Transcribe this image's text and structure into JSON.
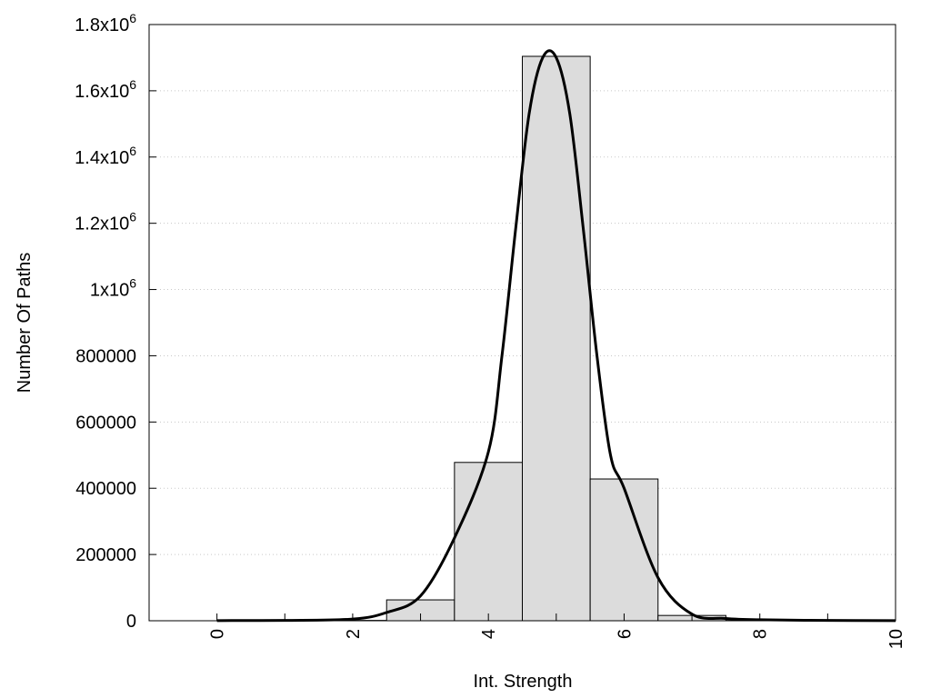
{
  "chart_data": {
    "type": "bar",
    "title": "",
    "xlabel": "Int. Strength",
    "ylabel": "Number Of Paths",
    "xlim": [
      -1,
      10
    ],
    "ylim": [
      0,
      1800000
    ],
    "grid": "horizontal-dotted",
    "x_ticks": [
      {
        "value": 0,
        "label": "0"
      },
      {
        "value": 2,
        "label": "2"
      },
      {
        "value": 4,
        "label": "4"
      },
      {
        "value": 6,
        "label": "6"
      },
      {
        "value": 8,
        "label": "8"
      },
      {
        "value": 10,
        "label": "10"
      }
    ],
    "y_ticks": [
      {
        "value": 0,
        "base": "0",
        "exp": ""
      },
      {
        "value": 200000,
        "base": "200000",
        "exp": ""
      },
      {
        "value": 400000,
        "base": "400000",
        "exp": ""
      },
      {
        "value": 600000,
        "base": "600000",
        "exp": ""
      },
      {
        "value": 800000,
        "base": "800000",
        "exp": ""
      },
      {
        "value": 1000000,
        "base": "1x10",
        "exp": "6"
      },
      {
        "value": 1200000,
        "base": "1.2x10",
        "exp": "6"
      },
      {
        "value": 1400000,
        "base": "1.4x10",
        "exp": "6"
      },
      {
        "value": 1600000,
        "base": "1.6x10",
        "exp": "6"
      },
      {
        "value": 1800000,
        "base": "1.8x10",
        "exp": "6"
      }
    ],
    "bar_width": 1,
    "bars": {
      "x": [
        0,
        1,
        2,
        3,
        4,
        5,
        6,
        7,
        8,
        9
      ],
      "values": [
        0,
        0,
        1000,
        63000,
        478000,
        1704000,
        428000,
        16000,
        1000,
        0
      ]
    },
    "curve": {
      "x": [
        0,
        1,
        2,
        2.5,
        3,
        3.5,
        4,
        4.2,
        4.4,
        4.6,
        4.8,
        5,
        5.2,
        5.4,
        5.6,
        5.8,
        6,
        6.5,
        7,
        7.5,
        8,
        9,
        10
      ],
      "y": [
        500,
        1000,
        5000,
        25000,
        75000,
        250000,
        510000,
        800000,
        1180000,
        1530000,
        1700000,
        1700000,
        1530000,
        1180000,
        800000,
        500000,
        400000,
        130000,
        20000,
        7000,
        3000,
        1000,
        500
      ]
    },
    "colors": {
      "bar_fill": "#dcdcdc",
      "bar_stroke": "#000000",
      "curve": "#000000",
      "grid": "#c8c8c8"
    }
  }
}
